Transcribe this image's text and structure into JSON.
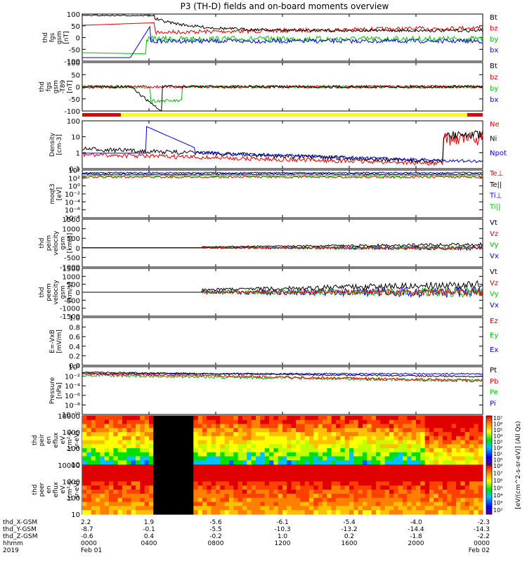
{
  "title": "P3 (TH-D) fields and on-board moments overview",
  "colors": {
    "black": "#000000",
    "red": "#e00000",
    "green": "#00c000",
    "blue": "#0000e0",
    "yellow": "#ffff00"
  },
  "chart_data": {
    "type": "line",
    "title": "P3 (TH-D) fields and on-board moments overview",
    "x_ticks": [
      "0000",
      "0400",
      "0800",
      "1200",
      "1600",
      "2000",
      "0000"
    ],
    "date_labels": [
      "Feb 01",
      "Feb 02"
    ],
    "year": "2019",
    "ephemeris": {
      "labels": [
        "thd_X-GSM",
        "thd_Y-GSM",
        "thd_Z-GSM",
        "hhmm",
        "2019"
      ],
      "columns": [
        {
          "x": "2.2",
          "y": "-8.7",
          "z": "-0.6",
          "t": "0000",
          "d": "Feb 01"
        },
        {
          "x": "1.9",
          "y": "-0.1",
          "z": "0.4",
          "t": "0400",
          "d": ""
        },
        {
          "x": "-5.6",
          "y": "-5.5",
          "z": "-0.2",
          "t": "0800",
          "d": ""
        },
        {
          "x": "-6.1",
          "y": "-10.3",
          "z": "1.0",
          "t": "1200",
          "d": ""
        },
        {
          "x": "-5.4",
          "y": "-13.2",
          "z": "0.2",
          "t": "1600",
          "d": ""
        },
        {
          "x": "-4.0",
          "y": "-14.4",
          "z": "-1.8",
          "t": "2000",
          "d": ""
        },
        {
          "x": "-2.3",
          "y": "-14.3",
          "z": "-2.2",
          "t": "0000",
          "d": "Feb 02"
        }
      ]
    },
    "panels": [
      {
        "ylabel": [
          "thd",
          "fgs",
          "gsm",
          "[nT]"
        ],
        "ticks": [
          "100",
          "50",
          "0",
          "-50",
          "-100"
        ],
        "ylim": [
          -100,
          100
        ],
        "scale": "linear",
        "legend": [
          "Bt",
          "bz",
          "by",
          "bx"
        ],
        "legend_colors": [
          "#000000",
          "#e00000",
          "#00c000",
          "#0000e0"
        ]
      },
      {
        "ylabel": [
          "thd",
          "fgs",
          "gsm",
          "-T89",
          "[nT]"
        ],
        "ticks": [
          "100",
          "50",
          "0",
          "-50",
          "-100"
        ],
        "ylim": [
          -120,
          120
        ],
        "scale": "linear",
        "legend": [
          "Bt",
          "bz",
          "by",
          "bx"
        ],
        "legend_colors": [
          "#000000",
          "#e00000",
          "#00c000",
          "#0000e0"
        ]
      },
      {
        "ylabel": [
          "Density",
          "[cm-3]"
        ],
        "ticks": [
          "100",
          "10",
          "1",
          "0.1"
        ],
        "ylim": [
          0.05,
          200
        ],
        "scale": "log",
        "legend": [
          "Ne",
          "Ni",
          "Npot"
        ],
        "legend_colors": [
          "#e00000",
          "#000000",
          "#0000e0"
        ]
      },
      {
        "ylabel": [
          "moqt3",
          "[eV]"
        ],
        "ticks": [
          "10⁴",
          "10²",
          "10⁰",
          "10⁻²",
          "10⁻⁴",
          "10⁻⁶",
          "10⁻⁸"
        ],
        "ylim": [
          1e-09,
          100000.0
        ],
        "scale": "log",
        "legend": [
          "Te⊥",
          "Te||",
          "Ti⊥",
          "Ti||"
        ],
        "legend_colors": [
          "#e00000",
          "#000000",
          "#0000e0",
          "#00c000"
        ]
      },
      {
        "ylabel": [
          "thd",
          "peim",
          "velocity",
          "gsm",
          "[km/s]"
        ],
        "ticks": [
          "1500",
          "1000",
          "500",
          "0",
          "-500",
          "-1000"
        ],
        "ylim": [
          -1000,
          1500
        ],
        "scale": "linear",
        "legend": [
          "Vt",
          "Vz",
          "Vy",
          "Vx"
        ],
        "legend_colors": [
          "#000000",
          "#e00000",
          "#00c000",
          "#0000e0"
        ]
      },
      {
        "ylabel": [
          "thd",
          "peem",
          "velocity",
          "gsm",
          "[km/s]"
        ],
        "ticks": [
          "1500",
          "1000",
          "500",
          "0",
          "-500",
          "-1000",
          "-1500"
        ],
        "ylim": [
          -1500,
          1500
        ],
        "scale": "linear",
        "legend": [
          "Vt",
          "Vz",
          "Vy",
          "Vx"
        ],
        "legend_colors": [
          "#000000",
          "#e00000",
          "#00c000",
          "#0000e0"
        ]
      },
      {
        "ylabel": [
          "E=-VxB",
          "[mV/m]"
        ],
        "ticks": [
          "1.0",
          "0.8",
          "0.6",
          "0.4",
          "0.2",
          "0.0"
        ],
        "ylim": [
          0,
          1
        ],
        "scale": "linear",
        "legend": [
          "Ez",
          "Ey",
          "Ex"
        ],
        "legend_colors": [
          "#e00000",
          "#00c000",
          "#0000e0"
        ]
      },
      {
        "ylabel": [
          "Pressure",
          "[nPa]"
        ],
        "ticks": [
          "10⁰",
          "10⁻²",
          "10⁻⁴",
          "10⁻⁶",
          "10⁻⁸",
          "10⁻¹⁰"
        ],
        "ylim": [
          1e-10,
          10
        ],
        "scale": "log",
        "legend": [
          "Pt",
          "Pb",
          "Pe",
          "Pi"
        ],
        "legend_colors": [
          "#000000",
          "#e00000",
          "#00c000",
          "#0000e0"
        ]
      },
      {
        "ylabel": [
          "thd",
          "peir",
          "en",
          "eflux",
          "eV",
          "(cm²-s-",
          "sr-eV)"
        ],
        "ticks": [
          "10000",
          "1000",
          "100",
          "10"
        ],
        "ylim": [
          5,
          30000
        ],
        "scale": "log",
        "type": "heatmap"
      },
      {
        "ylabel": [
          "thd",
          "peer",
          "en",
          "eflux",
          "eV",
          "(cm²-s-",
          "sr-eV)"
        ],
        "ticks": [
          "10000",
          "1000",
          "100",
          "10"
        ],
        "ylim": [
          5,
          30000
        ],
        "scale": "log",
        "type": "heatmap"
      }
    ],
    "colorbar_ticks": [
      "10⁷",
      "10⁶",
      "10⁵",
      "10⁴",
      "10³",
      "10²",
      "10¹",
      "10⁰",
      "10⁸",
      "10⁷",
      "10⁶",
      "10⁵",
      "10⁴",
      "10³",
      "10²"
    ],
    "colorbar_label": "[eV/(cm^2-s-sr-eV)] (All Qs)"
  }
}
